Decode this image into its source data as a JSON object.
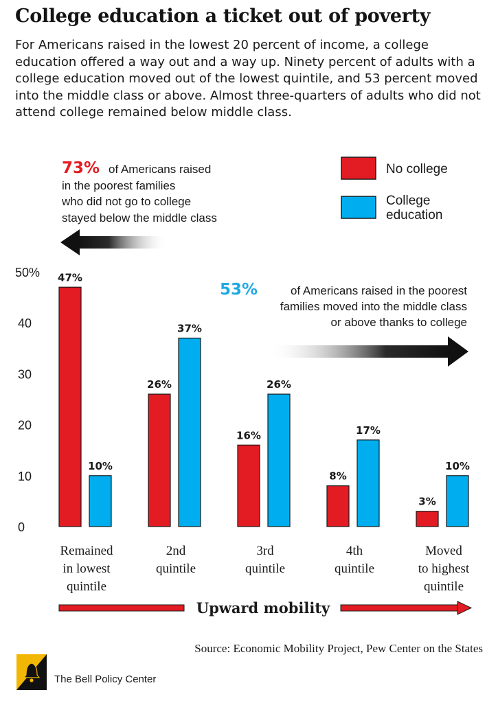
{
  "title": "College education a ticket out of poverty",
  "intro": "For Americans raised in the lowest 20 percent of income, a college education offered a way out and a way up. Ninety percent of adults with a college education moved out of the lowest quintile, and 53 percent moved into the middle class or above. Almost three-quarters of adults who did not attend college remained below middle class.",
  "colors": {
    "no_college": "#e31b23",
    "college": "#00aeef",
    "blue_text": "#1fa9e1",
    "red_text": "#e31b23"
  },
  "legend": {
    "no_college": "No college",
    "college": [
      "College",
      "education"
    ]
  },
  "annotations": {
    "left": {
      "pct": "73%",
      "lines": [
        "of Americans raised",
        "in the poorest families",
        "who did not go to college",
        "stayed below the middle class"
      ]
    },
    "right": {
      "pct": "53%",
      "lines": [
        "of Americans raised in the poorest",
        "families moved into the middle class",
        "or above thanks to college"
      ]
    }
  },
  "chart_data": {
    "type": "bar",
    "categories": [
      [
        "Remained",
        "in lowest",
        "quintile"
      ],
      [
        "2nd",
        "quintile"
      ],
      [
        "3rd",
        "quintile"
      ],
      [
        "4th",
        "quintile"
      ],
      [
        "Moved",
        "to highest",
        "quintile"
      ]
    ],
    "series": [
      {
        "name": "No college",
        "values": [
          47,
          26,
          16,
          8,
          3
        ]
      },
      {
        "name": "College education",
        "values": [
          10,
          37,
          26,
          17,
          10
        ]
      }
    ],
    "value_labels": [
      [
        "47%",
        "26%",
        "16%",
        "8%",
        "3%"
      ],
      [
        "10%",
        "37%",
        "26%",
        "17%",
        "10%"
      ]
    ],
    "ylim": [
      0,
      50
    ],
    "yticks": [
      "0",
      "10",
      "20",
      "30",
      "40",
      "50%"
    ],
    "ytick_values": [
      0,
      10,
      20,
      30,
      40,
      50
    ],
    "xlabel": "Upward mobility"
  },
  "source": "Source: Economic Mobility Project, Pew Center on the States",
  "organization": "The Bell Policy Center"
}
